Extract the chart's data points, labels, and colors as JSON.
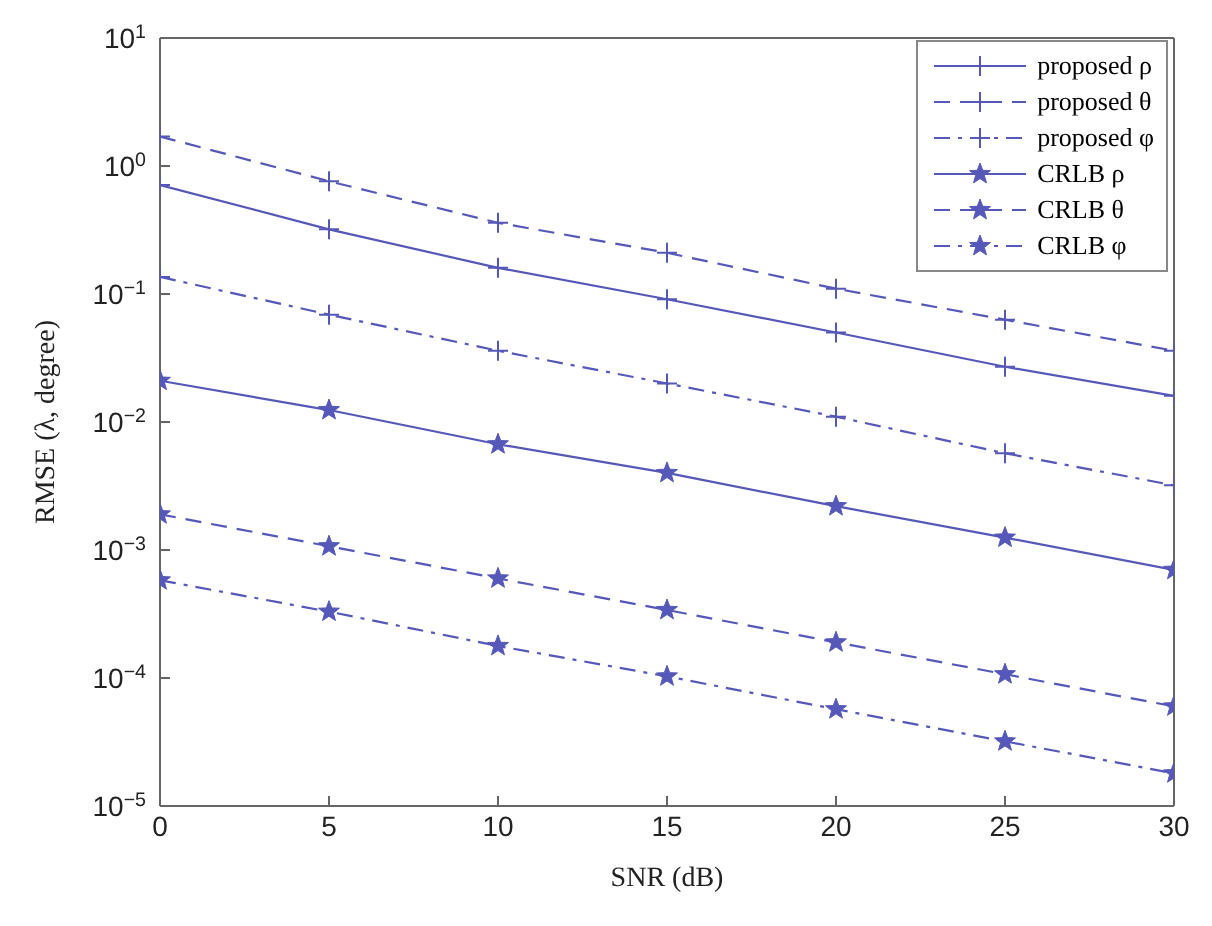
{
  "chart_data": {
    "type": "line",
    "xlabel": "SNR (dB)",
    "ylabel": "RMSE (λ, degree)",
    "x": [
      0,
      5,
      10,
      15,
      20,
      25,
      30
    ],
    "xlim": [
      0,
      30
    ],
    "xticks": [
      0,
      5,
      10,
      15,
      20,
      25,
      30
    ],
    "log": true,
    "ylim": [
      1e-05,
      10
    ],
    "yticks": [
      {
        "value": 1e-05,
        "label": "10$^{−5}$"
      },
      {
        "value": 0.0001,
        "label": "10$^{−4}$"
      },
      {
        "value": 0.001,
        "label": "10$^{−3}$"
      },
      {
        "value": 0.01,
        "label": "10$^{−2}$"
      },
      {
        "value": 0.1,
        "label": "10$^{−1}$"
      },
      {
        "value": 1,
        "label": "10$^{0}$"
      },
      {
        "value": 10,
        "label": "10$^{1}$"
      }
    ],
    "grid": false,
    "legend": "top right",
    "series": [
      {
        "name": "proposed ρ",
        "color": "#5558b8",
        "marker": "cross",
        "line_style": "solid",
        "values": [
          0.71,
          0.32,
          0.16,
          0.091,
          0.05,
          0.027,
          0.016
        ]
      },
      {
        "name": "proposed θ",
        "color": "#5558b8",
        "marker": "cross",
        "line_style": "dashed",
        "values": [
          1.7,
          0.76,
          0.36,
          0.21,
          0.11,
          0.063,
          0.036
        ]
      },
      {
        "name": "proposed φ",
        "color": "#5558b8",
        "marker": "cross",
        "line_style": "dashdot",
        "values": [
          0.136,
          0.069,
          0.036,
          0.02,
          0.011,
          0.0057,
          0.0032
        ]
      },
      {
        "name": "CRLB ρ",
        "color": "#5558b8",
        "marker": "star",
        "line_style": "solid",
        "values": [
          0.021,
          0.0124,
          0.0067,
          0.004,
          0.0022,
          0.00125,
          0.0007
        ]
      },
      {
        "name": "CRLB θ",
        "color": "#5558b8",
        "marker": "star",
        "line_style": "dashed",
        "values": [
          0.0019,
          0.00107,
          0.0006,
          0.00034,
          0.00019,
          0.000107,
          6e-05
        ]
      },
      {
        "name": "CRLB φ",
        "color": "#5558b8",
        "marker": "star",
        "line_style": "dashdot",
        "values": [
          0.00058,
          0.00033,
          0.000178,
          0.000103,
          5.7e-05,
          3.2e-05,
          1.8e-05
        ]
      }
    ]
  }
}
